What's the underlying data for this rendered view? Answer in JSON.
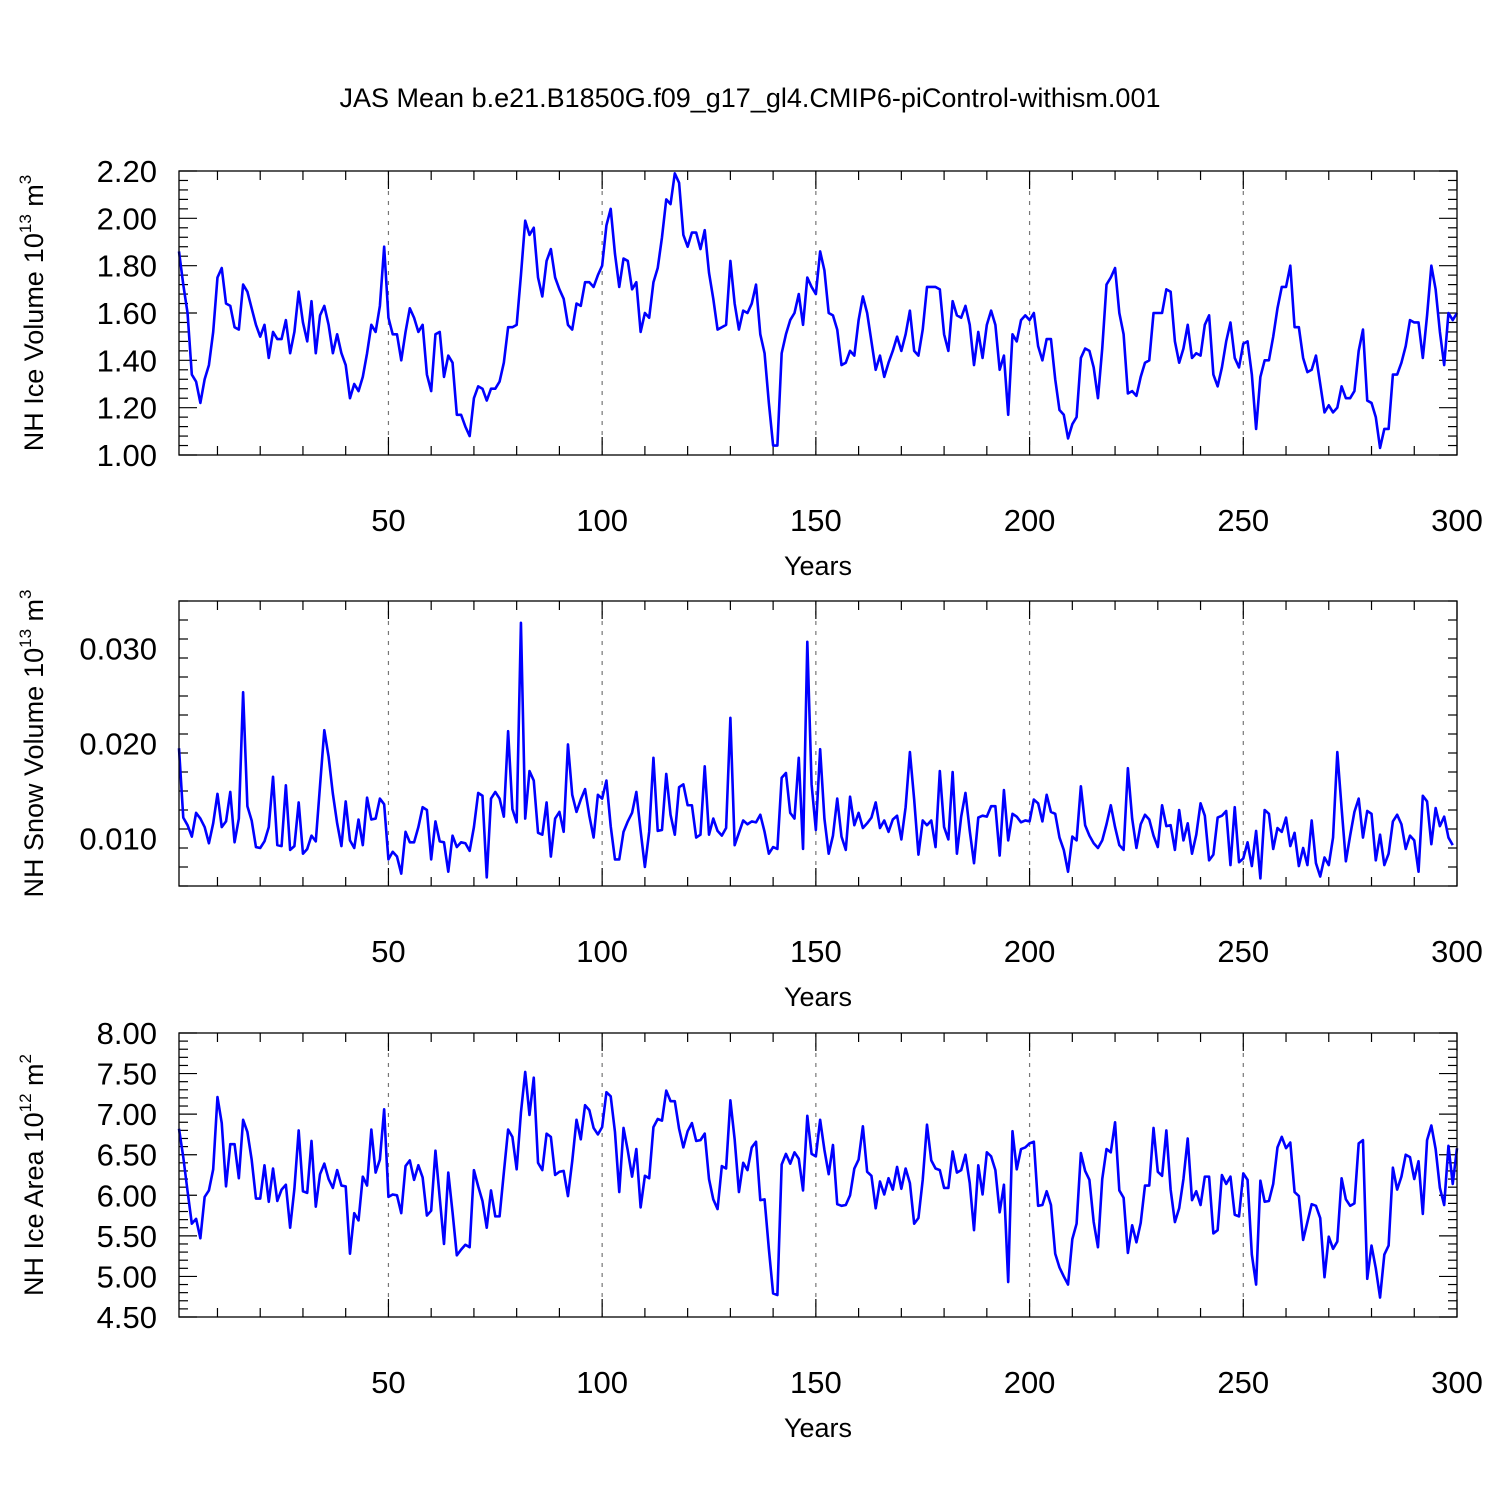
{
  "figure": {
    "title": "JAS Mean b.e21.B1850G.f09_g17_gl4.CMIP6-piControl-withism.001"
  },
  "colors": {
    "line": "#0000ff",
    "axis": "#000000",
    "grid": "#777777",
    "background": "#ffffff"
  },
  "chart_data": [
    {
      "type": "line",
      "ylabel": "NH Ice Volume",
      "yunit_base": "10",
      "yunit_exp": "13",
      "yunit_tail": " m",
      "yunit_tail_exp": "3",
      "xlabel": "Years",
      "xlim": [
        1,
        300
      ],
      "ylim": [
        1.0,
        2.2
      ],
      "xticks": [
        50,
        100,
        150,
        200,
        250,
        300
      ],
      "yticks": [
        1.0,
        1.2,
        1.4,
        1.6,
        1.8,
        2.0,
        2.2
      ],
      "yticks_text": [
        "1.00",
        "1.20",
        "1.40",
        "1.60",
        "1.80",
        "2.00",
        "2.20"
      ],
      "grid": "dashed vertical at x ticks",
      "series": [
        {
          "x0": 1,
          "values": [
            1.86,
            1.72,
            1.6,
            1.34,
            1.31,
            1.22,
            1.32,
            1.38,
            1.52,
            1.75,
            1.79,
            1.64,
            1.63,
            1.54,
            1.53,
            1.72,
            1.69,
            1.62,
            1.55,
            1.5,
            1.55,
            1.41,
            1.52,
            1.49,
            1.49,
            1.57,
            1.43,
            1.52,
            1.69,
            1.56,
            1.48,
            1.65,
            1.43,
            1.59,
            1.63,
            1.55,
            1.43,
            1.51,
            1.43,
            1.38,
            1.24,
            1.3,
            1.27,
            1.33,
            1.43,
            1.55,
            1.52,
            1.63,
            1.88,
            1.58,
            1.51,
            1.51,
            1.4,
            1.52,
            1.62,
            1.58,
            1.52,
            1.55,
            1.34,
            1.27,
            1.51,
            1.52,
            1.33,
            1.42,
            1.39,
            1.17,
            1.17,
            1.12,
            1.08,
            1.24,
            1.29,
            1.28,
            1.23,
            1.28,
            1.28,
            1.31,
            1.39,
            1.54,
            1.54,
            1.55,
            1.76,
            1.99,
            1.93,
            1.96,
            1.75,
            1.67,
            1.82,
            1.87,
            1.75,
            1.7,
            1.66,
            1.55,
            1.53,
            1.64,
            1.63,
            1.73,
            1.73,
            1.71,
            1.76,
            1.8,
            1.97,
            2.04,
            1.85,
            1.71,
            1.83,
            1.82,
            1.7,
            1.73,
            1.52,
            1.6,
            1.58,
            1.73,
            1.79,
            1.92,
            2.08,
            2.06,
            2.19,
            2.15,
            1.93,
            1.88,
            1.94,
            1.94,
            1.87,
            1.95,
            1.77,
            1.66,
            1.53,
            1.54,
            1.55,
            1.82,
            1.64,
            1.53,
            1.61,
            1.6,
            1.64,
            1.72,
            1.51,
            1.43,
            1.22,
            1.04,
            1.04,
            1.43,
            1.51,
            1.57,
            1.6,
            1.68,
            1.55,
            1.75,
            1.71,
            1.68,
            1.86,
            1.78,
            1.6,
            1.59,
            1.53,
            1.38,
            1.39,
            1.44,
            1.42,
            1.57,
            1.67,
            1.6,
            1.48,
            1.36,
            1.42,
            1.33,
            1.39,
            1.44,
            1.5,
            1.44,
            1.51,
            1.61,
            1.44,
            1.42,
            1.53,
            1.71,
            1.71,
            1.71,
            1.7,
            1.51,
            1.44,
            1.65,
            1.59,
            1.58,
            1.63,
            1.55,
            1.38,
            1.52,
            1.41,
            1.55,
            1.61,
            1.55,
            1.36,
            1.42,
            1.17,
            1.51,
            1.48,
            1.57,
            1.59,
            1.57,
            1.6,
            1.46,
            1.4,
            1.49,
            1.49,
            1.32,
            1.19,
            1.17,
            1.07,
            1.13,
            1.16,
            1.41,
            1.45,
            1.44,
            1.37,
            1.24,
            1.45,
            1.72,
            1.75,
            1.79,
            1.6,
            1.51,
            1.26,
            1.27,
            1.25,
            1.33,
            1.39,
            1.4,
            1.6,
            1.6,
            1.6,
            1.7,
            1.69,
            1.48,
            1.39,
            1.45,
            1.55,
            1.41,
            1.43,
            1.42,
            1.55,
            1.59,
            1.34,
            1.29,
            1.37,
            1.48,
            1.56,
            1.41,
            1.37,
            1.47,
            1.48,
            1.34,
            1.11,
            1.33,
            1.4,
            1.4,
            1.5,
            1.62,
            1.71,
            1.71,
            1.8,
            1.54,
            1.54,
            1.41,
            1.35,
            1.36,
            1.42,
            1.3,
            1.18,
            1.21,
            1.18,
            1.2,
            1.29,
            1.24,
            1.24,
            1.27,
            1.44,
            1.53,
            1.23,
            1.22,
            1.16,
            1.03,
            1.11,
            1.11,
            1.34,
            1.34,
            1.39,
            1.46,
            1.57,
            1.56,
            1.56,
            1.41,
            1.59,
            1.8,
            1.7,
            1.52,
            1.38,
            1.6,
            1.57,
            1.6
          ]
        }
      ]
    },
    {
      "type": "line",
      "ylabel": "NH Snow Volume",
      "yunit_base": "10",
      "yunit_exp": "13",
      "yunit_tail": " m",
      "yunit_tail_exp": "3",
      "xlabel": "Years",
      "xlim": [
        1,
        300
      ],
      "ylim": [
        0.005,
        0.035
      ],
      "xticks": [
        50,
        100,
        150,
        200,
        250,
        300
      ],
      "yticks": [
        0.01,
        0.02,
        0.03
      ],
      "yticks_text": [
        "0.010",
        "0.020",
        "0.030"
      ],
      "grid": "dashed vertical at x ticks",
      "series": [
        {
          "x0": 1,
          "values": [
            0.0195,
            0.0122,
            0.0114,
            0.0102,
            0.0127,
            0.0121,
            0.0112,
            0.0095,
            0.0116,
            0.0147,
            0.0112,
            0.0118,
            0.0149,
            0.0096,
            0.0121,
            0.0254,
            0.0134,
            0.0119,
            0.0091,
            0.009,
            0.0097,
            0.0112,
            0.0165,
            0.0093,
            0.0092,
            0.0156,
            0.0088,
            0.0092,
            0.0138,
            0.0084,
            0.0089,
            0.0103,
            0.0097,
            0.0156,
            0.0214,
            0.0186,
            0.0147,
            0.0116,
            0.0092,
            0.0139,
            0.0098,
            0.009,
            0.012,
            0.0093,
            0.0143,
            0.012,
            0.0121,
            0.0142,
            0.0136,
            0.0078,
            0.0086,
            0.0081,
            0.0063,
            0.0107,
            0.0096,
            0.0096,
            0.0112,
            0.0133,
            0.013,
            0.0078,
            0.0118,
            0.0097,
            0.0096,
            0.0065,
            0.0103,
            0.0091,
            0.0096,
            0.0095,
            0.0087,
            0.0112,
            0.0148,
            0.0145,
            0.0059,
            0.0142,
            0.0149,
            0.0142,
            0.0123,
            0.0213,
            0.0131,
            0.0117,
            0.0327,
            0.0121,
            0.0171,
            0.0161,
            0.0106,
            0.0104,
            0.0138,
            0.0081,
            0.0121,
            0.0128,
            0.0107,
            0.0199,
            0.0146,
            0.0128,
            0.0141,
            0.0152,
            0.0124,
            0.0101,
            0.0146,
            0.0142,
            0.0161,
            0.0113,
            0.0078,
            0.0078,
            0.0107,
            0.0118,
            0.0127,
            0.0149,
            0.0108,
            0.007,
            0.0107,
            0.0185,
            0.0108,
            0.0109,
            0.0168,
            0.0125,
            0.0104,
            0.0154,
            0.0157,
            0.0135,
            0.0135,
            0.0101,
            0.0104,
            0.0176,
            0.0104,
            0.0121,
            0.0108,
            0.0103,
            0.0111,
            0.0227,
            0.0093,
            0.0106,
            0.0119,
            0.0115,
            0.0118,
            0.0117,
            0.0125,
            0.0107,
            0.0084,
            0.0091,
            0.0089,
            0.0164,
            0.0169,
            0.0127,
            0.0121,
            0.0185,
            0.0089,
            0.0307,
            0.0157,
            0.0109,
            0.0194,
            0.0121,
            0.0084,
            0.0103,
            0.0142,
            0.0102,
            0.0088,
            0.0144,
            0.0114,
            0.0127,
            0.0111,
            0.0116,
            0.0122,
            0.0138,
            0.0111,
            0.0119,
            0.0107,
            0.012,
            0.0124,
            0.0099,
            0.0133,
            0.0191,
            0.0141,
            0.0083,
            0.0119,
            0.0114,
            0.0119,
            0.0091,
            0.0171,
            0.0112,
            0.0099,
            0.017,
            0.0084,
            0.0123,
            0.0148,
            0.0108,
            0.0074,
            0.0122,
            0.0124,
            0.0123,
            0.0134,
            0.0134,
            0.0082,
            0.0151,
            0.0098,
            0.0126,
            0.0123,
            0.0117,
            0.0119,
            0.0118,
            0.0141,
            0.0137,
            0.0118,
            0.0146,
            0.0128,
            0.0126,
            0.0101,
            0.0088,
            0.0065,
            0.0102,
            0.0098,
            0.0155,
            0.0114,
            0.0103,
            0.0095,
            0.009,
            0.0098,
            0.0115,
            0.0135,
            0.0112,
            0.0093,
            0.0088,
            0.0174,
            0.0121,
            0.009,
            0.0115,
            0.0125,
            0.012,
            0.0103,
            0.0091,
            0.0135,
            0.0113,
            0.0114,
            0.0088,
            0.013,
            0.0098,
            0.0116,
            0.0084,
            0.0104,
            0.0137,
            0.0124,
            0.0077,
            0.0083,
            0.0122,
            0.0124,
            0.0129,
            0.0072,
            0.0133,
            0.0075,
            0.0079,
            0.0096,
            0.0071,
            0.0108,
            0.0058,
            0.013,
            0.0126,
            0.0089,
            0.0111,
            0.0107,
            0.0122,
            0.0092,
            0.0106,
            0.0071,
            0.009,
            0.0072,
            0.0119,
            0.0074,
            0.006,
            0.008,
            0.0072,
            0.0101,
            0.0191,
            0.0132,
            0.0076,
            0.0103,
            0.0128,
            0.0142,
            0.0101,
            0.0129,
            0.0126,
            0.0077,
            0.0104,
            0.0072,
            0.0084,
            0.0118,
            0.0125,
            0.0115,
            0.0089,
            0.0103,
            0.0098,
            0.0065,
            0.0145,
            0.0139,
            0.0094,
            0.0132,
            0.0113,
            0.0123,
            0.0101,
            0.0093
          ]
        }
      ]
    },
    {
      "type": "line",
      "ylabel": "NH Ice Area",
      "yunit_base": "10",
      "yunit_exp": "12",
      "yunit_tail": " m",
      "yunit_tail_exp": "2",
      "xlabel": "Years",
      "xlim": [
        1,
        300
      ],
      "ylim": [
        4.5,
        8.0
      ],
      "xticks": [
        50,
        100,
        150,
        200,
        250,
        300
      ],
      "yticks": [
        4.5,
        5.0,
        5.5,
        6.0,
        6.5,
        7.0,
        7.5,
        8.0
      ],
      "yticks_text": [
        "4.50",
        "5.00",
        "5.50",
        "6.00",
        "6.50",
        "7.00",
        "7.50",
        "8.00"
      ],
      "grid": "dashed vertical at x ticks",
      "series": [
        {
          "x0": 1,
          "values": [
            6.82,
            6.47,
            6.05,
            5.65,
            5.71,
            5.47,
            5.98,
            6.06,
            6.32,
            7.21,
            6.89,
            6.11,
            6.63,
            6.63,
            6.21,
            6.93,
            6.78,
            6.44,
            5.96,
            5.96,
            6.37,
            5.92,
            6.33,
            5.93,
            6.07,
            6.13,
            5.6,
            6.08,
            6.8,
            6.05,
            6.03,
            6.67,
            5.86,
            6.26,
            6.39,
            6.2,
            6.09,
            6.31,
            6.12,
            6.11,
            5.28,
            5.78,
            5.69,
            6.23,
            6.12,
            6.81,
            6.28,
            6.44,
            7.06,
            5.98,
            6.01,
            6.0,
            5.78,
            6.36,
            6.43,
            6.19,
            6.37,
            6.22,
            5.75,
            5.81,
            6.55,
            5.97,
            5.4,
            6.28,
            5.79,
            5.26,
            5.33,
            5.39,
            5.36,
            6.31,
            6.11,
            5.93,
            5.6,
            6.06,
            5.74,
            5.74,
            6.28,
            6.81,
            6.72,
            6.32,
            7.02,
            7.52,
            6.99,
            7.45,
            6.4,
            6.31,
            6.76,
            6.72,
            6.25,
            6.29,
            6.3,
            5.99,
            6.42,
            6.93,
            6.69,
            7.11,
            7.05,
            6.83,
            6.75,
            6.84,
            7.27,
            7.22,
            6.78,
            6.04,
            6.83,
            6.55,
            6.23,
            6.57,
            5.85,
            6.24,
            6.21,
            6.84,
            6.94,
            6.92,
            7.29,
            7.16,
            7.16,
            6.82,
            6.59,
            6.79,
            6.89,
            6.67,
            6.68,
            6.76,
            6.2,
            5.95,
            5.83,
            6.36,
            6.33,
            7.17,
            6.69,
            6.04,
            6.4,
            6.31,
            6.59,
            6.66,
            5.94,
            5.95,
            5.34,
            4.79,
            4.77,
            6.38,
            6.51,
            6.39,
            6.53,
            6.45,
            6.06,
            6.98,
            6.51,
            6.48,
            6.93,
            6.56,
            6.26,
            6.62,
            5.89,
            5.87,
            5.88,
            6.0,
            6.33,
            6.44,
            6.85,
            6.29,
            6.24,
            5.84,
            6.17,
            6.01,
            6.21,
            6.07,
            6.35,
            6.08,
            6.33,
            6.15,
            5.65,
            5.72,
            6.19,
            6.87,
            6.43,
            6.33,
            6.31,
            6.09,
            6.09,
            6.54,
            6.28,
            6.31,
            6.5,
            6.15,
            5.57,
            6.37,
            6.01,
            6.53,
            6.48,
            6.31,
            5.79,
            6.13,
            4.93,
            6.79,
            6.32,
            6.57,
            6.59,
            6.64,
            6.66,
            5.87,
            5.88,
            6.05,
            5.88,
            5.28,
            5.11,
            5.0,
            4.9,
            5.46,
            5.65,
            6.52,
            6.3,
            6.19,
            5.67,
            5.36,
            6.2,
            6.57,
            6.53,
            6.9,
            6.06,
            5.97,
            5.29,
            5.63,
            5.42,
            5.66,
            6.12,
            6.12,
            6.83,
            6.29,
            6.24,
            6.8,
            6.07,
            5.67,
            5.84,
            6.2,
            6.7,
            5.94,
            6.05,
            5.88,
            6.23,
            6.23,
            5.53,
            5.57,
            6.25,
            6.14,
            6.23,
            5.76,
            5.74,
            6.27,
            6.19,
            5.27,
            4.9,
            6.18,
            5.92,
            5.93,
            6.14,
            6.59,
            6.72,
            6.58,
            6.65,
            6.04,
            5.99,
            5.45,
            5.67,
            5.89,
            5.87,
            5.72,
            4.99,
            5.49,
            5.34,
            5.43,
            6.21,
            5.95,
            5.87,
            5.9,
            6.64,
            6.68,
            4.97,
            5.38,
            5.1,
            4.74,
            5.27,
            5.38,
            6.34,
            6.07,
            6.23,
            6.5,
            6.47,
            6.2,
            6.42,
            5.77,
            6.68,
            6.86,
            6.57,
            6.09,
            5.88,
            6.61,
            6.14,
            6.58
          ]
        }
      ]
    }
  ]
}
